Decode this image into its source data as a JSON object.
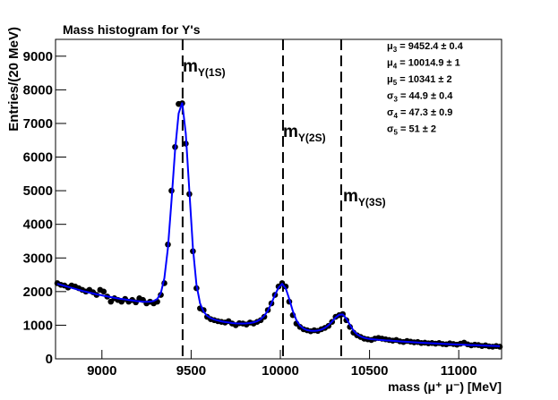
{
  "chart_data": {
    "type": "histogram-fit",
    "title": "Mass histogram for Υ's",
    "x_label": "mass (μ⁺ μ⁻) [MeV]",
    "y_label": "Entries/(20 MeV)",
    "xlim": [
      8740,
      11240
    ],
    "ylim": [
      0,
      9500
    ],
    "xticks": [
      9000,
      9500,
      10000,
      10500,
      11000
    ],
    "yticks": [
      0,
      1000,
      2000,
      3000,
      4000,
      5000,
      6000,
      7000,
      8000,
      9000
    ],
    "x": [
      8750,
      8770,
      8790,
      8810,
      8830,
      8850,
      8870,
      8890,
      8910,
      8930,
      8950,
      8970,
      8990,
      9010,
      9030,
      9050,
      9070,
      9090,
      9110,
      9130,
      9150,
      9170,
      9190,
      9210,
      9230,
      9250,
      9270,
      9290,
      9310,
      9330,
      9350,
      9370,
      9390,
      9410,
      9430,
      9450,
      9470,
      9490,
      9510,
      9530,
      9550,
      9570,
      9590,
      9610,
      9630,
      9650,
      9670,
      9690,
      9710,
      9730,
      9750,
      9770,
      9790,
      9810,
      9830,
      9850,
      9870,
      9890,
      9910,
      9930,
      9950,
      9970,
      9990,
      10010,
      10030,
      10050,
      10070,
      10090,
      10110,
      10130,
      10150,
      10170,
      10190,
      10210,
      10230,
      10250,
      10270,
      10290,
      10310,
      10330,
      10350,
      10370,
      10390,
      10410,
      10430,
      10450,
      10470,
      10490,
      10510,
      10530,
      10550,
      10570,
      10590,
      10610,
      10630,
      10650,
      10670,
      10690,
      10710,
      10730,
      10750,
      10770,
      10790,
      10810,
      10830,
      10850,
      10870,
      10890,
      10910,
      10930,
      10950,
      10970,
      10990,
      11010,
      11030,
      11050,
      11070,
      11090,
      11110,
      11130,
      11150,
      11170,
      11190,
      11210,
      11230
    ],
    "series": [
      {
        "style": "points",
        "color": "#000000",
        "values": [
          2250,
          2200,
          2180,
          2120,
          2180,
          2150,
          2100,
          2050,
          2000,
          2050,
          1980,
          1900,
          2050,
          2000,
          1850,
          1700,
          1800,
          1750,
          1700,
          1780,
          1700,
          1750,
          1680,
          1800,
          1750,
          1650,
          1700,
          1650,
          1700,
          1900,
          2250,
          3400,
          5000,
          6300,
          7580,
          7600,
          6400,
          4900,
          3200,
          2100,
          1500,
          1450,
          1250,
          1180,
          1150,
          1120,
          1100,
          1080,
          1120,
          1050,
          1000,
          1060,
          1050,
          1020,
          1080,
          1050,
          1100,
          1150,
          1250,
          1450,
          1650,
          1900,
          2150,
          2250,
          2150,
          1700,
          1300,
          1050,
          950,
          880,
          850,
          820,
          850,
          830,
          880,
          920,
          980,
          1100,
          1250,
          1300,
          1330,
          1150,
          950,
          780,
          700,
          650,
          600,
          580,
          560,
          600,
          620,
          600,
          580,
          560,
          540,
          560,
          520,
          500,
          530,
          510,
          490,
          500,
          470,
          480,
          460,
          470,
          450,
          470,
          440,
          430,
          460,
          440,
          420,
          450,
          480,
          430,
          400,
          420,
          410,
          380,
          400,
          370,
          360,
          380,
          360
        ]
      },
      {
        "style": "line",
        "color": "#0000ff",
        "values": [
          2230,
          2200,
          2170,
          2140,
          2110,
          2080,
          2050,
          2020,
          1995,
          1970,
          1945,
          1920,
          1900,
          1875,
          1855,
          1835,
          1815,
          1795,
          1780,
          1765,
          1750,
          1735,
          1720,
          1710,
          1700,
          1695,
          1700,
          1720,
          1780,
          1950,
          2400,
          3300,
          4700,
          6200,
          7300,
          7620,
          6700,
          5000,
          3300,
          2200,
          1650,
          1400,
          1280,
          1210,
          1170,
          1140,
          1115,
          1095,
          1080,
          1065,
          1055,
          1050,
          1050,
          1055,
          1065,
          1085,
          1120,
          1180,
          1280,
          1430,
          1650,
          1900,
          2120,
          2230,
          2100,
          1780,
          1420,
          1150,
          990,
          900,
          855,
          835,
          830,
          840,
          870,
          920,
          1000,
          1110,
          1230,
          1310,
          1320,
          1200,
          1010,
          840,
          730,
          665,
          625,
          600,
          585,
          575,
          565,
          560,
          550,
          545,
          535,
          528,
          520,
          512,
          505,
          498,
          492,
          485,
          480,
          474,
          468,
          463,
          458,
          452,
          447,
          442,
          437,
          432,
          428,
          423,
          418,
          414,
          409,
          405,
          401,
          397,
          393,
          389,
          385,
          381,
          377
        ]
      }
    ],
    "vlines": [
      {
        "value": 9452.4,
        "main": "m",
        "sub": "Υ(1S)"
      },
      {
        "value": 10014.9,
        "main": "m",
        "sub": "Υ(2S)"
      },
      {
        "value": 10341,
        "main": "m",
        "sub": "Υ(3S)"
      }
    ],
    "stats": [
      {
        "symbol": "μ",
        "sub": "3",
        "text": " = 9452.4 ± 0.4"
      },
      {
        "symbol": "μ",
        "sub": "4",
        "text": " = 10014.9 ± 1"
      },
      {
        "symbol": "μ",
        "sub": "5",
        "text": " = 10341 ± 2"
      },
      {
        "symbol": "σ",
        "sub": "3",
        "text": " = 44.9 ± 0.4"
      },
      {
        "symbol": "σ",
        "sub": "4",
        "text": " = 47.3 ± 0.9"
      },
      {
        "symbol": "σ",
        "sub": "5",
        "text": " = 51 ± 2"
      }
    ]
  }
}
